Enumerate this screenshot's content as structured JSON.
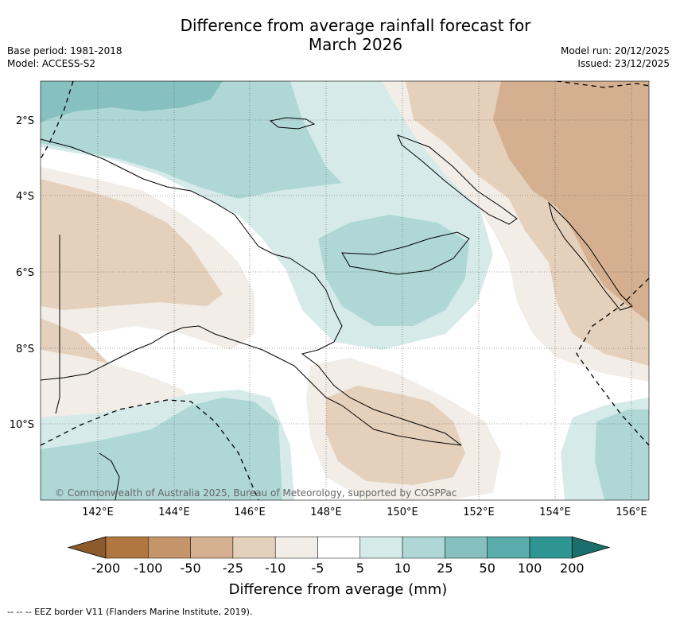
{
  "title_line1": "Difference from average rainfall forecast for",
  "title_line2": "March 2026",
  "base_period": "Base period: 1981-2018",
  "model": "Model: ACCESS-S2",
  "model_run": "Model run: 20/12/2025",
  "issued": "Issued: 23/12/2025",
  "copyright": "© Commonwealth of Australia 2025, Bureau of Meteorology, supported by COSPPac",
  "lat_labels": [
    "2°S",
    "4°S",
    "6°S",
    "8°S",
    "10°S"
  ],
  "lon_labels": [
    "142°E",
    "144°E",
    "146°E",
    "148°E",
    "150°E",
    "152°E",
    "154°E",
    "156°E"
  ],
  "colorbar": {
    "title": "Difference from average (mm)",
    "tick_labels": [
      "-200",
      "-100",
      "-50",
      "-25",
      "-10",
      "-5",
      "5",
      "10",
      "25",
      "50",
      "100",
      "200"
    ],
    "colors": [
      "#8c5a2c",
      "#b07840",
      "#c4956a",
      "#d4b090",
      "#e5d0bc",
      "#f2ede6",
      "#ffffff",
      "#d5eae9",
      "#afd7d6",
      "#86c0bf",
      "#5aacaa",
      "#2e9593",
      "#1a6e6b"
    ]
  },
  "legend_eez": "-- -- -- EEZ border V11 (Flanders Marine Institute, 2019)."
}
